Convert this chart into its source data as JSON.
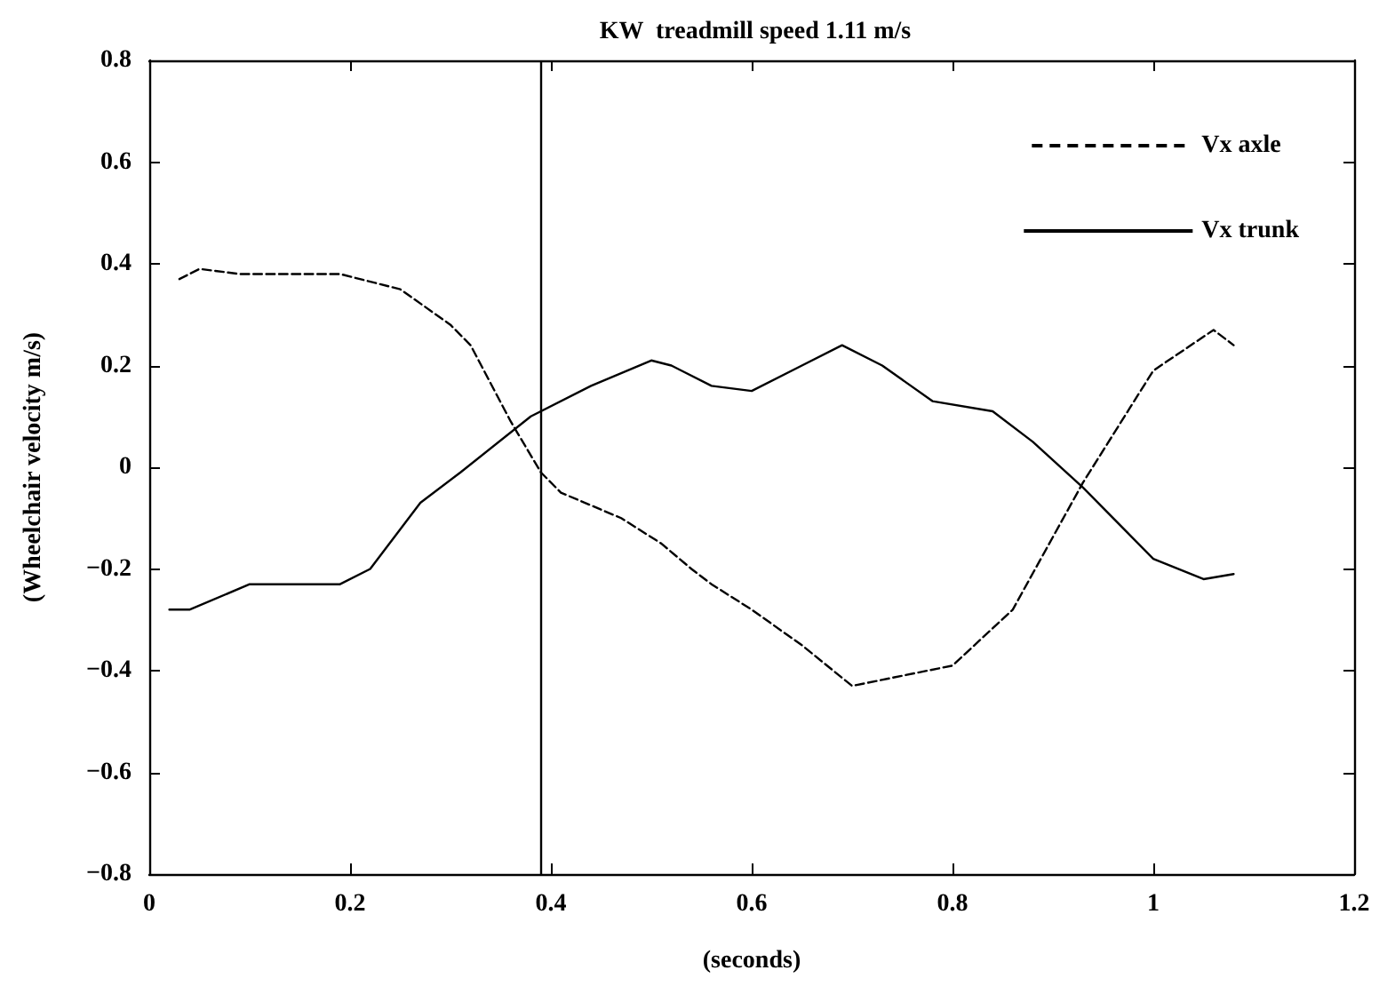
{
  "chart_data": {
    "type": "line",
    "title": "KW  treadmill speed 1.11 m/s",
    "xlabel": "(seconds)",
    "ylabel": "(Wheelchair velocity m/s)",
    "xlim": [
      0,
      1.2
    ],
    "xticks": [
      0,
      0.2,
      0.4,
      0.6,
      0.8,
      1,
      1.2
    ],
    "ylim": [
      -0.8,
      0.8
    ],
    "yticks": [
      -0.8,
      -0.6,
      -0.4,
      -0.2,
      0,
      0.2,
      0.4,
      0.6,
      0.8
    ],
    "grid": false,
    "legend": "top right",
    "marker": "none",
    "ref_lines": [
      {
        "axis": "x",
        "value": 0.39,
        "color": "#000000",
        "line_style": "solid"
      }
    ],
    "series": [
      {
        "name": "Vx axle",
        "color": "#000000",
        "line_style": "dashed",
        "x": [
          0.03,
          0.05,
          0.09,
          0.15,
          0.19,
          0.25,
          0.3,
          0.32,
          0.36,
          0.39,
          0.41,
          0.47,
          0.51,
          0.54,
          0.56,
          0.6,
          0.65,
          0.7,
          0.75,
          0.8,
          0.86,
          0.93,
          1.0,
          1.06,
          1.08
        ],
        "values": [
          0.37,
          0.39,
          0.38,
          0.38,
          0.38,
          0.35,
          0.28,
          0.24,
          0.09,
          -0.01,
          -0.05,
          -0.1,
          -0.15,
          -0.2,
          -0.23,
          -0.28,
          -0.35,
          -0.43,
          -0.41,
          -0.39,
          -0.28,
          -0.03,
          0.19,
          0.27,
          0.24
        ]
      },
      {
        "name": "Vx trunk",
        "color": "#000000",
        "line_style": "solid",
        "x": [
          0.02,
          0.04,
          0.1,
          0.19,
          0.22,
          0.27,
          0.31,
          0.38,
          0.44,
          0.5,
          0.52,
          0.56,
          0.6,
          0.65,
          0.69,
          0.73,
          0.78,
          0.84,
          0.88,
          0.93,
          1.0,
          1.05,
          1.08
        ],
        "values": [
          -0.28,
          -0.28,
          -0.23,
          -0.23,
          -0.2,
          -0.07,
          -0.01,
          0.1,
          0.16,
          0.21,
          0.2,
          0.16,
          0.15,
          0.2,
          0.24,
          0.2,
          0.13,
          0.11,
          0.05,
          -0.04,
          -0.18,
          -0.22,
          -0.21
        ]
      }
    ]
  }
}
